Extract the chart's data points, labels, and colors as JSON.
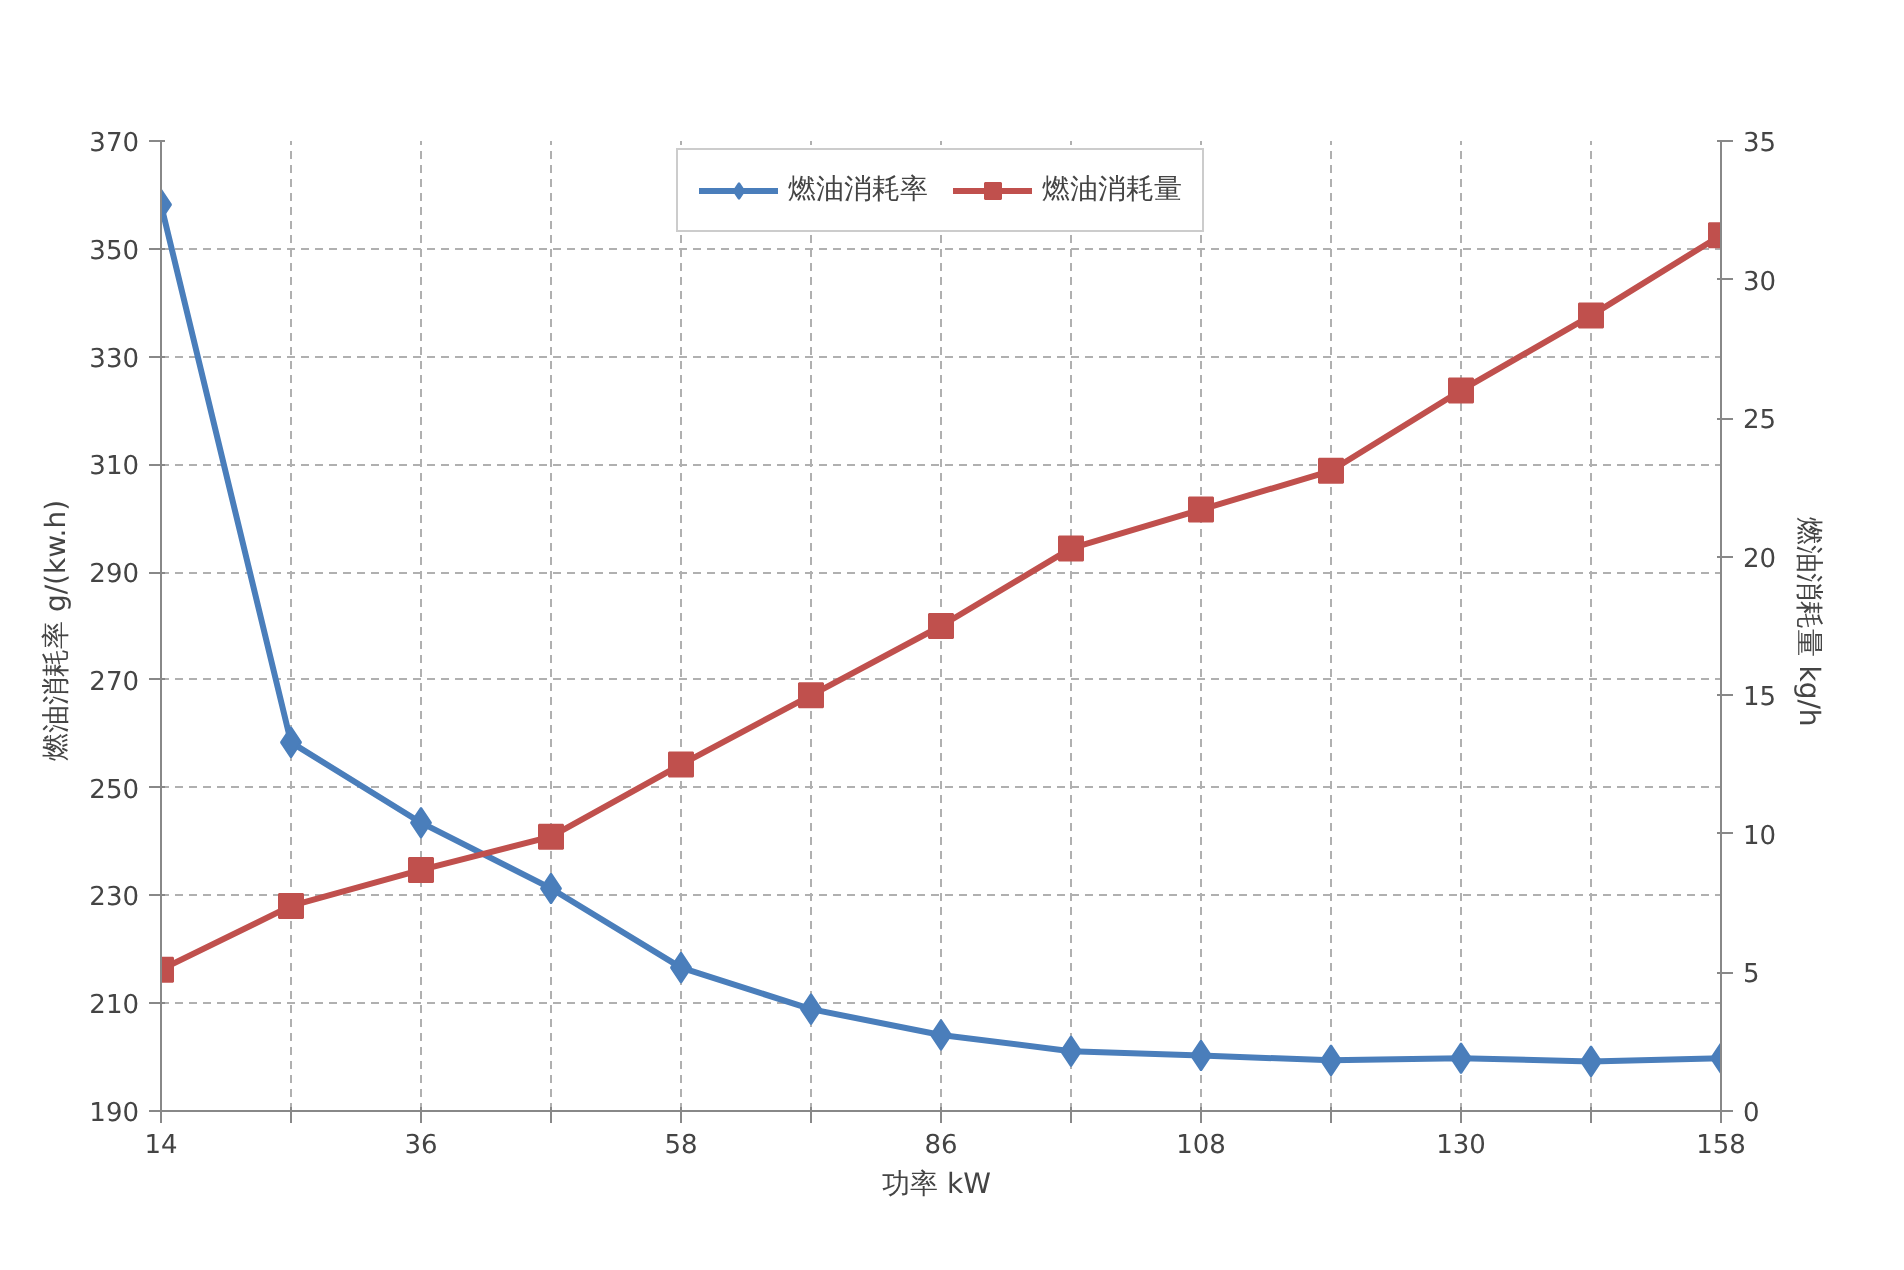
{
  "chart_data": {
    "type": "line",
    "xlabel": "功率  kW",
    "ylabel": "燃油消耗率  g/(kw.h)",
    "y2label": "燃油消耗量  kg/h",
    "categories": [
      "14",
      null,
      "36",
      null,
      "58",
      null,
      "86",
      null,
      "108",
      null,
      "130",
      null,
      "158"
    ],
    "series": [
      {
        "name": "燃油消耗率",
        "color": "#4a7ebb",
        "marker": "diamond",
        "values": [
          358.2,
          258.4,
          243.5,
          231.3,
          216.6,
          208.9,
          204.1,
          201.1,
          200.3,
          199.4,
          199.8,
          199.2,
          199.8
        ]
      },
      {
        "name": "燃油消耗量",
        "color": "#c0504d",
        "marker": "square",
        "axis": "y2",
        "values": [
          5.1,
          7.4,
          8.7,
          9.9,
          12.5,
          15.0,
          17.5,
          20.3,
          21.7,
          23.1,
          26.0,
          28.7,
          31.6
        ]
      }
    ],
    "ylim": [
      190,
      370
    ],
    "yticks": [
      190,
      210,
      230,
      250,
      270,
      290,
      310,
      330,
      350,
      370
    ],
    "y2lim": [
      0,
      35
    ],
    "y2ticks": [
      0,
      5,
      10,
      15,
      20,
      25,
      30,
      35
    ],
    "grid": true,
    "legend": "top",
    "line_style": "solid"
  }
}
